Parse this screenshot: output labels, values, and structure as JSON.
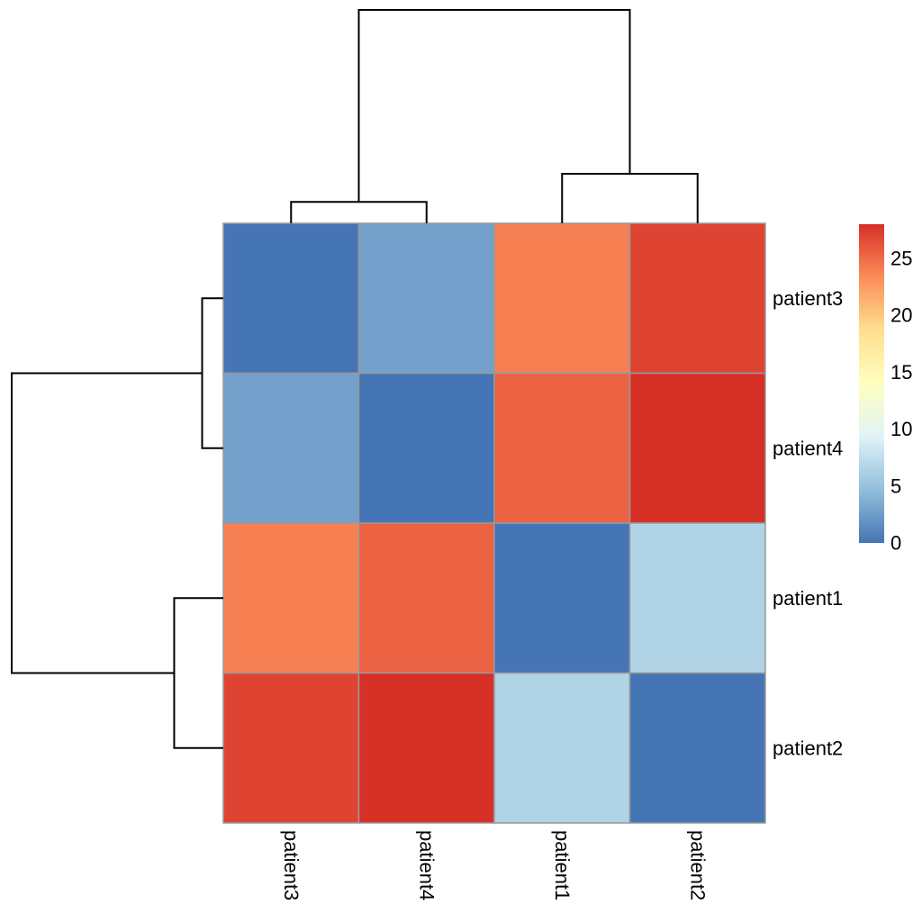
{
  "figure": {
    "background": "#FFFFFF"
  },
  "chart_data": {
    "type": "heatmap",
    "title": "",
    "description": "Clustered heatmap (distance matrix) of 4 patients with row and column dendrograms and a color scale legend",
    "rows": [
      "patient3",
      "patient4",
      "patient1",
      "patient2"
    ],
    "columns": [
      "patient3",
      "patient4",
      "patient1",
      "patient2"
    ],
    "matrix": [
      [
        0,
        2.8,
        24,
        27
      ],
      [
        2.8,
        0,
        25.5,
        28
      ],
      [
        24,
        25.5,
        0,
        6.5
      ],
      [
        27,
        28,
        6.5,
        0
      ]
    ],
    "colorscale": {
      "name": "RdYlBu-reversed",
      "domain": [
        0,
        28
      ],
      "stops": [
        "#4575B4",
        "#91BFDB",
        "#E0F3F8",
        "#FFFFBF",
        "#FEE090",
        "#FC8D59",
        "#D73027"
      ]
    },
    "legend": {
      "min": 0,
      "max": 28,
      "ticks": [
        0,
        5,
        10,
        15,
        20,
        25
      ],
      "position": "right"
    },
    "row_dendrogram": {
      "orientation": "left",
      "merges": [
        {
          "members": [
            0,
            1
          ],
          "height": 2.8
        },
        {
          "members": [
            2,
            3
          ],
          "height": 6.5
        },
        {
          "members": [
            "m0",
            "m1"
          ],
          "height": 28
        }
      ]
    },
    "col_dendrogram": {
      "orientation": "top",
      "merges": [
        {
          "members": [
            0,
            1
          ],
          "height": 2.8
        },
        {
          "members": [
            2,
            3
          ],
          "height": 6.5
        },
        {
          "members": [
            "m0",
            "m1"
          ],
          "height": 28
        }
      ]
    },
    "grid_on": true,
    "grid_color": "#999999",
    "dendrogram_color": "#000000"
  }
}
